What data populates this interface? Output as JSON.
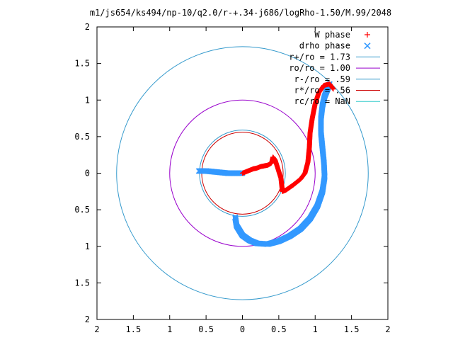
{
  "chart_data": {
    "type": "scatter",
    "title": "m1/js654/ks494/np-10/q2.0/r-+.34-j686/logRho-1.50/M.99/2048",
    "xlim": [
      -2,
      2
    ],
    "ylim": [
      -2,
      2
    ],
    "x_ticks": [
      -2,
      -1.5,
      -1,
      -0.5,
      0,
      0.5,
      1,
      1.5,
      2
    ],
    "x_tick_labels": [
      "2",
      "1.5",
      "1",
      "0.5",
      "0",
      "0.5",
      "1",
      "1.5",
      "2"
    ],
    "y_ticks": [
      2,
      1.5,
      1,
      0.5,
      0,
      -0.5,
      -1,
      -1.5,
      -2
    ],
    "y_tick_labels": [
      "2",
      "1.5",
      "1",
      "0.5",
      "0",
      "0.5",
      "1",
      "1.5",
      "2"
    ],
    "grid": false,
    "legend_position": "top-right",
    "series": [
      {
        "name": "W phase",
        "marker": "+",
        "color": "#ff0000",
        "points": [
          [
            0.0,
            0.0
          ],
          [
            0.05,
            0.02
          ],
          [
            0.1,
            0.04
          ],
          [
            0.15,
            0.06
          ],
          [
            0.2,
            0.07
          ],
          [
            0.25,
            0.09
          ],
          [
            0.3,
            0.1
          ],
          [
            0.35,
            0.11
          ],
          [
            0.4,
            0.14
          ],
          [
            0.42,
            0.22
          ],
          [
            0.45,
            0.18
          ],
          [
            0.53,
            -0.07
          ],
          [
            0.55,
            -0.25
          ],
          [
            0.6,
            -0.23
          ],
          [
            0.7,
            -0.16
          ],
          [
            0.8,
            -0.08
          ],
          [
            0.86,
            0.0
          ],
          [
            0.9,
            0.15
          ],
          [
            0.92,
            0.35
          ],
          [
            0.93,
            0.55
          ],
          [
            0.96,
            0.75
          ],
          [
            1.0,
            0.95
          ],
          [
            1.05,
            1.1
          ],
          [
            1.12,
            1.2
          ],
          [
            1.2,
            1.22
          ],
          [
            1.25,
            1.15
          ]
        ]
      },
      {
        "name": "drho phase",
        "marker": "x",
        "color": "#3399ff",
        "points": [
          [
            -0.6,
            0.03
          ],
          [
            -0.5,
            0.03
          ],
          [
            -0.4,
            0.02
          ],
          [
            -0.3,
            0.01
          ],
          [
            -0.2,
            0.0
          ],
          [
            -0.1,
            0.0
          ],
          [
            0.0,
            0.0
          ],
          [
            -0.1,
            -0.6
          ],
          [
            -0.08,
            -0.72
          ],
          [
            0.0,
            -0.85
          ],
          [
            0.1,
            -0.92
          ],
          [
            0.2,
            -0.96
          ],
          [
            0.35,
            -0.97
          ],
          [
            0.5,
            -0.93
          ],
          [
            0.65,
            -0.86
          ],
          [
            0.8,
            -0.76
          ],
          [
            0.93,
            -0.62
          ],
          [
            1.03,
            -0.45
          ],
          [
            1.1,
            -0.25
          ],
          [
            1.13,
            -0.05
          ],
          [
            1.12,
            0.15
          ],
          [
            1.1,
            0.35
          ],
          [
            1.08,
            0.55
          ],
          [
            1.08,
            0.75
          ],
          [
            1.1,
            0.92
          ],
          [
            1.13,
            1.05
          ],
          [
            1.17,
            1.15
          ],
          [
            1.2,
            1.22
          ]
        ]
      }
    ],
    "circles": [
      {
        "name": "r+/ro = 1.73",
        "radius": 1.73,
        "color": "#3399cc"
      },
      {
        "name": "ro/ro = 1.00",
        "radius": 1.0,
        "color": "#9900cc"
      },
      {
        "name": "r-/ro = .59",
        "radius": 0.59,
        "color": "#3399cc"
      },
      {
        "name": "r*/ro = .56",
        "radius": 0.56,
        "color": "#cc0000"
      },
      {
        "name": "rc/ro = NaN",
        "radius": null,
        "color": "#33cccc"
      }
    ]
  }
}
